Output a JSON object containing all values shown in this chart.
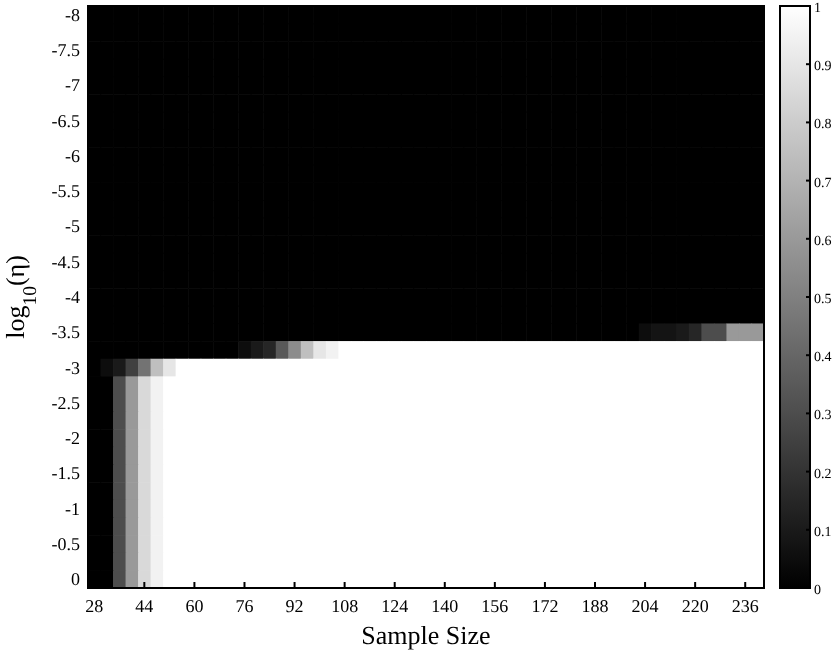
{
  "chart_data": {
    "type": "heatmap",
    "xlabel": "Sample Size",
    "ylabel": "log$_{10}$(η)",
    "x": [
      28,
      32,
      36,
      40,
      44,
      48,
      52,
      56,
      60,
      64,
      68,
      72,
      76,
      80,
      84,
      88,
      92,
      96,
      100,
      104,
      108,
      112,
      116,
      120,
      124,
      128,
      132,
      136,
      140,
      144,
      148,
      152,
      156,
      160,
      164,
      168,
      172,
      176,
      180,
      184,
      188,
      192,
      196,
      200,
      204,
      208,
      212,
      216,
      220,
      224,
      228,
      232,
      236,
      240
    ],
    "y_categories": [
      "-8",
      null,
      "-7.5",
      null,
      "-7",
      null,
      "-6.5",
      null,
      "-6",
      null,
      "-5.5",
      null,
      "-5",
      null,
      "-4.5",
      null,
      "-4",
      null,
      "-3.5",
      null,
      "-3",
      null,
      "-2.5",
      null,
      "-2",
      null,
      "-1.5",
      null,
      "-1",
      null,
      "-0.5",
      null,
      "0"
    ],
    "cells": [
      [
        0,
        0,
        0,
        0,
        0,
        0,
        0,
        0,
        0,
        0,
        0,
        0,
        0,
        0,
        0,
        0,
        0,
        0,
        0,
        0,
        0,
        0,
        0,
        0,
        0,
        0,
        0,
        0,
        0,
        0,
        0,
        0,
        0,
        0,
        0,
        0,
        0,
        0,
        0,
        0,
        0,
        0,
        0,
        0,
        0,
        0,
        0,
        0,
        0,
        0,
        0,
        0,
        0,
        0
      ],
      [
        0,
        0,
        0,
        0,
        0,
        0,
        0,
        0,
        0,
        0,
        0,
        0,
        0,
        0,
        0,
        0,
        0,
        0,
        0,
        0,
        0,
        0,
        0,
        0,
        0,
        0,
        0,
        0,
        0,
        0,
        0,
        0,
        0,
        0,
        0,
        0,
        0,
        0,
        0,
        0,
        0,
        0,
        0,
        0,
        0,
        0,
        0,
        0,
        0,
        0,
        0,
        0,
        0,
        0
      ],
      [
        0,
        0,
        0,
        0,
        0,
        0,
        0,
        0,
        0,
        0,
        0,
        0,
        0,
        0,
        0,
        0,
        0,
        0,
        0,
        0,
        0,
        0,
        0,
        0,
        0,
        0,
        0,
        0,
        0,
        0,
        0,
        0,
        0,
        0,
        0,
        0,
        0,
        0,
        0,
        0,
        0,
        0,
        0,
        0,
        0,
        0,
        0,
        0,
        0,
        0,
        0,
        0,
        0,
        0
      ],
      [
        0,
        0,
        0,
        0,
        0,
        0,
        0,
        0,
        0,
        0,
        0,
        0,
        0,
        0,
        0,
        0,
        0,
        0,
        0,
        0,
        0,
        0,
        0,
        0,
        0,
        0,
        0,
        0,
        0,
        0,
        0,
        0,
        0,
        0,
        0,
        0,
        0,
        0,
        0,
        0,
        0,
        0,
        0,
        0,
        0,
        0,
        0,
        0,
        0,
        0,
        0,
        0,
        0,
        0
      ],
      [
        0,
        0,
        0,
        0,
        0,
        0,
        0,
        0,
        0,
        0,
        0,
        0,
        0,
        0,
        0,
        0,
        0,
        0,
        0,
        0,
        0,
        0,
        0,
        0,
        0,
        0,
        0,
        0,
        0,
        0,
        0,
        0,
        0,
        0,
        0,
        0,
        0,
        0,
        0,
        0,
        0,
        0,
        0,
        0,
        0,
        0,
        0,
        0,
        0,
        0,
        0,
        0,
        0,
        0
      ],
      [
        0,
        0,
        0,
        0,
        0,
        0,
        0,
        0,
        0,
        0,
        0,
        0,
        0,
        0,
        0,
        0,
        0,
        0,
        0,
        0,
        0,
        0,
        0,
        0,
        0,
        0,
        0,
        0,
        0,
        0,
        0,
        0,
        0,
        0,
        0,
        0,
        0,
        0,
        0,
        0,
        0,
        0,
        0,
        0,
        0,
        0,
        0,
        0,
        0,
        0,
        0,
        0,
        0,
        0
      ],
      [
        0,
        0,
        0,
        0,
        0,
        0,
        0,
        0,
        0,
        0,
        0,
        0,
        0,
        0,
        0,
        0,
        0,
        0,
        0,
        0,
        0,
        0,
        0,
        0,
        0,
        0,
        0,
        0,
        0,
        0,
        0,
        0,
        0,
        0,
        0,
        0,
        0,
        0,
        0,
        0,
        0,
        0,
        0,
        0,
        0,
        0,
        0,
        0,
        0,
        0,
        0,
        0,
        0,
        0
      ],
      [
        0,
        0,
        0,
        0,
        0,
        0,
        0,
        0,
        0,
        0,
        0,
        0,
        0,
        0,
        0,
        0,
        0,
        0,
        0,
        0,
        0,
        0,
        0,
        0,
        0,
        0,
        0,
        0,
        0,
        0,
        0,
        0,
        0,
        0,
        0,
        0,
        0,
        0,
        0,
        0,
        0,
        0,
        0,
        0,
        0,
        0,
        0,
        0,
        0,
        0,
        0,
        0,
        0,
        0
      ],
      [
        0,
        0,
        0,
        0,
        0,
        0,
        0,
        0,
        0,
        0,
        0,
        0,
        0,
        0,
        0,
        0,
        0,
        0,
        0,
        0,
        0,
        0,
        0,
        0,
        0,
        0,
        0,
        0,
        0,
        0,
        0,
        0,
        0,
        0,
        0,
        0,
        0,
        0,
        0,
        0,
        0,
        0,
        0,
        0,
        0,
        0,
        0,
        0,
        0,
        0,
        0,
        0,
        0,
        0
      ],
      [
        0,
        0,
        0,
        0,
        0,
        0,
        0,
        0,
        0,
        0,
        0,
        0,
        0,
        0,
        0,
        0,
        0,
        0,
        0,
        0,
        0,
        0,
        0,
        0,
        0,
        0,
        0,
        0,
        0,
        0,
        0,
        0,
        0,
        0,
        0,
        0,
        0,
        0,
        0,
        0,
        0,
        0,
        0,
        0,
        0,
        0,
        0,
        0,
        0,
        0,
        0,
        0,
        0,
        0
      ],
      [
        0,
        0,
        0,
        0,
        0,
        0,
        0,
        0,
        0,
        0,
        0,
        0,
        0,
        0,
        0,
        0,
        0,
        0,
        0,
        0,
        0,
        0,
        0,
        0,
        0,
        0,
        0,
        0,
        0,
        0,
        0,
        0,
        0,
        0,
        0,
        0,
        0,
        0,
        0,
        0,
        0,
        0,
        0,
        0,
        0,
        0,
        0,
        0,
        0,
        0,
        0,
        0,
        0,
        0
      ],
      [
        0,
        0,
        0,
        0,
        0,
        0,
        0,
        0,
        0,
        0,
        0,
        0,
        0,
        0,
        0,
        0,
        0,
        0,
        0,
        0,
        0,
        0,
        0,
        0,
        0,
        0,
        0,
        0,
        0,
        0,
        0,
        0,
        0,
        0,
        0,
        0,
        0,
        0,
        0,
        0,
        0,
        0,
        0,
        0,
        0,
        0,
        0,
        0,
        0,
        0,
        0,
        0,
        0,
        0
      ],
      [
        0,
        0,
        0,
        0,
        0,
        0,
        0,
        0,
        0,
        0,
        0,
        0,
        0,
        0,
        0,
        0,
        0,
        0,
        0,
        0,
        0,
        0,
        0,
        0,
        0,
        0,
        0,
        0,
        0,
        0,
        0,
        0,
        0,
        0,
        0,
        0,
        0,
        0,
        0,
        0,
        0,
        0,
        0,
        0,
        0,
        0,
        0,
        0,
        0,
        0,
        0,
        0,
        0,
        0
      ],
      [
        0,
        0,
        0,
        0,
        0,
        0,
        0,
        0,
        0,
        0,
        0,
        0,
        0,
        0,
        0,
        0,
        0,
        0,
        0,
        0,
        0,
        0,
        0,
        0,
        0,
        0,
        0,
        0,
        0,
        0,
        0,
        0,
        0,
        0,
        0,
        0,
        0,
        0,
        0,
        0,
        0,
        0,
        0,
        0,
        0,
        0,
        0,
        0,
        0,
        0,
        0,
        0,
        0,
        0
      ],
      [
        0,
        0,
        0,
        0,
        0,
        0,
        0,
        0,
        0,
        0,
        0,
        0,
        0,
        0,
        0,
        0,
        0,
        0,
        0,
        0,
        0,
        0,
        0,
        0,
        0,
        0,
        0,
        0,
        0,
        0,
        0,
        0,
        0,
        0,
        0,
        0,
        0,
        0,
        0,
        0,
        0,
        0,
        0,
        0,
        0,
        0,
        0,
        0,
        0,
        0,
        0,
        0,
        0,
        0
      ],
      [
        0,
        0,
        0,
        0,
        0,
        0,
        0,
        0,
        0,
        0,
        0,
        0,
        0,
        0,
        0,
        0,
        0,
        0,
        0,
        0,
        0,
        0,
        0,
        0,
        0,
        0,
        0,
        0,
        0,
        0,
        0,
        0,
        0,
        0,
        0,
        0,
        0,
        0,
        0,
        0,
        0,
        0,
        0,
        0,
        0,
        0,
        0,
        0,
        0,
        0,
        0,
        0,
        0,
        0
      ],
      [
        0,
        0,
        0,
        0,
        0,
        0,
        0,
        0,
        0,
        0,
        0,
        0,
        0,
        0,
        0,
        0,
        0,
        0,
        0,
        0,
        0,
        0,
        0,
        0,
        0,
        0,
        0,
        0,
        0,
        0,
        0,
        0,
        0,
        0,
        0,
        0,
        0,
        0,
        0,
        0,
        0,
        0,
        0,
        0,
        0,
        0,
        0,
        0,
        0,
        0,
        0,
        0,
        0,
        0
      ],
      [
        0,
        0,
        0,
        0,
        0,
        0,
        0,
        0,
        0,
        0,
        0,
        0,
        0,
        0,
        0,
        0,
        0,
        0,
        0,
        0,
        0,
        0,
        0,
        0,
        0,
        0,
        0,
        0,
        0,
        0,
        0,
        0,
        0,
        0,
        0,
        0,
        0,
        0,
        0,
        0,
        0,
        0,
        0,
        0,
        0,
        0,
        0,
        0,
        0,
        0,
        0,
        0,
        0,
        0
      ],
      [
        0,
        0,
        0,
        0,
        0,
        0,
        0,
        0,
        0,
        0,
        0,
        0,
        0,
        0,
        0,
        0,
        0,
        0,
        0,
        0,
        0,
        0,
        0,
        0,
        0,
        0,
        0,
        0,
        0,
        0,
        0,
        0,
        0,
        0,
        0,
        0,
        0,
        0,
        0,
        0,
        0,
        0,
        0,
        0,
        0.05,
        0.08,
        0.08,
        0.1,
        0.15,
        0.3,
        0.3,
        0.6,
        0.6,
        0.6
      ],
      [
        0,
        0,
        0,
        0,
        0,
        0,
        0,
        0,
        0,
        0,
        0,
        0,
        0.05,
        0.1,
        0.15,
        0.35,
        0.55,
        0.75,
        0.9,
        0.95,
        1,
        1,
        1,
        1,
        1,
        1,
        1,
        1,
        1,
        1,
        1,
        1,
        1,
        1,
        1,
        1,
        1,
        1,
        1,
        1,
        1,
        1,
        1,
        1,
        1,
        1,
        1,
        1,
        1,
        1,
        1,
        1,
        1,
        1
      ],
      [
        0,
        0.05,
        0.1,
        0.25,
        0.45,
        0.75,
        0.9,
        1,
        1,
        1,
        1,
        1,
        1,
        1,
        1,
        1,
        1,
        1,
        1,
        1,
        1,
        1,
        1,
        1,
        1,
        1,
        1,
        1,
        1,
        1,
        1,
        1,
        1,
        1,
        1,
        1,
        1,
        1,
        1,
        1,
        1,
        1,
        1,
        1,
        1,
        1,
        1,
        1,
        1,
        1,
        1,
        1,
        1,
        1
      ],
      [
        0,
        0,
        0.3,
        0.6,
        0.85,
        0.95,
        1,
        1,
        1,
        1,
        1,
        1,
        1,
        1,
        1,
        1,
        1,
        1,
        1,
        1,
        1,
        1,
        1,
        1,
        1,
        1,
        1,
        1,
        1,
        1,
        1,
        1,
        1,
        1,
        1,
        1,
        1,
        1,
        1,
        1,
        1,
        1,
        1,
        1,
        1,
        1,
        1,
        1,
        1,
        1,
        1,
        1,
        1,
        1
      ],
      [
        0,
        0,
        0.3,
        0.6,
        0.85,
        0.95,
        1,
        1,
        1,
        1,
        1,
        1,
        1,
        1,
        1,
        1,
        1,
        1,
        1,
        1,
        1,
        1,
        1,
        1,
        1,
        1,
        1,
        1,
        1,
        1,
        1,
        1,
        1,
        1,
        1,
        1,
        1,
        1,
        1,
        1,
        1,
        1,
        1,
        1,
        1,
        1,
        1,
        1,
        1,
        1,
        1,
        1,
        1,
        1
      ],
      [
        0,
        0,
        0.3,
        0.6,
        0.85,
        0.95,
        1,
        1,
        1,
        1,
        1,
        1,
        1,
        1,
        1,
        1,
        1,
        1,
        1,
        1,
        1,
        1,
        1,
        1,
        1,
        1,
        1,
        1,
        1,
        1,
        1,
        1,
        1,
        1,
        1,
        1,
        1,
        1,
        1,
        1,
        1,
        1,
        1,
        1,
        1,
        1,
        1,
        1,
        1,
        1,
        1,
        1,
        1,
        1
      ],
      [
        0,
        0,
        0.3,
        0.6,
        0.85,
        0.95,
        1,
        1,
        1,
        1,
        1,
        1,
        1,
        1,
        1,
        1,
        1,
        1,
        1,
        1,
        1,
        1,
        1,
        1,
        1,
        1,
        1,
        1,
        1,
        1,
        1,
        1,
        1,
        1,
        1,
        1,
        1,
        1,
        1,
        1,
        1,
        1,
        1,
        1,
        1,
        1,
        1,
        1,
        1,
        1,
        1,
        1,
        1,
        1
      ],
      [
        0,
        0,
        0.3,
        0.6,
        0.85,
        0.95,
        1,
        1,
        1,
        1,
        1,
        1,
        1,
        1,
        1,
        1,
        1,
        1,
        1,
        1,
        1,
        1,
        1,
        1,
        1,
        1,
        1,
        1,
        1,
        1,
        1,
        1,
        1,
        1,
        1,
        1,
        1,
        1,
        1,
        1,
        1,
        1,
        1,
        1,
        1,
        1,
        1,
        1,
        1,
        1,
        1,
        1,
        1,
        1
      ],
      [
        0,
        0,
        0.3,
        0.6,
        0.85,
        0.95,
        1,
        1,
        1,
        1,
        1,
        1,
        1,
        1,
        1,
        1,
        1,
        1,
        1,
        1,
        1,
        1,
        1,
        1,
        1,
        1,
        1,
        1,
        1,
        1,
        1,
        1,
        1,
        1,
        1,
        1,
        1,
        1,
        1,
        1,
        1,
        1,
        1,
        1,
        1,
        1,
        1,
        1,
        1,
        1,
        1,
        1,
        1,
        1
      ],
      [
        0,
        0,
        0.3,
        0.6,
        0.85,
        0.95,
        1,
        1,
        1,
        1,
        1,
        1,
        1,
        1,
        1,
        1,
        1,
        1,
        1,
        1,
        1,
        1,
        1,
        1,
        1,
        1,
        1,
        1,
        1,
        1,
        1,
        1,
        1,
        1,
        1,
        1,
        1,
        1,
        1,
        1,
        1,
        1,
        1,
        1,
        1,
        1,
        1,
        1,
        1,
        1,
        1,
        1,
        1,
        1
      ],
      [
        0,
        0,
        0.3,
        0.6,
        0.85,
        0.95,
        1,
        1,
        1,
        1,
        1,
        1,
        1,
        1,
        1,
        1,
        1,
        1,
        1,
        1,
        1,
        1,
        1,
        1,
        1,
        1,
        1,
        1,
        1,
        1,
        1,
        1,
        1,
        1,
        1,
        1,
        1,
        1,
        1,
        1,
        1,
        1,
        1,
        1,
        1,
        1,
        1,
        1,
        1,
        1,
        1,
        1,
        1,
        1
      ],
      [
        0,
        0,
        0.3,
        0.6,
        0.85,
        0.95,
        1,
        1,
        1,
        1,
        1,
        1,
        1,
        1,
        1,
        1,
        1,
        1,
        1,
        1,
        1,
        1,
        1,
        1,
        1,
        1,
        1,
        1,
        1,
        1,
        1,
        1,
        1,
        1,
        1,
        1,
        1,
        1,
        1,
        1,
        1,
        1,
        1,
        1,
        1,
        1,
        1,
        1,
        1,
        1,
        1,
        1,
        1,
        1
      ],
      [
        0,
        0,
        0.3,
        0.6,
        0.85,
        0.95,
        1,
        1,
        1,
        1,
        1,
        1,
        1,
        1,
        1,
        1,
        1,
        1,
        1,
        1,
        1,
        1,
        1,
        1,
        1,
        1,
        1,
        1,
        1,
        1,
        1,
        1,
        1,
        1,
        1,
        1,
        1,
        1,
        1,
        1,
        1,
        1,
        1,
        1,
        1,
        1,
        1,
        1,
        1,
        1,
        1,
        1,
        1,
        1
      ],
      [
        0,
        0,
        0.3,
        0.6,
        0.85,
        0.95,
        1,
        1,
        1,
        1,
        1,
        1,
        1,
        1,
        1,
        1,
        1,
        1,
        1,
        1,
        1,
        1,
        1,
        1,
        1,
        1,
        1,
        1,
        1,
        1,
        1,
        1,
        1,
        1,
        1,
        1,
        1,
        1,
        1,
        1,
        1,
        1,
        1,
        1,
        1,
        1,
        1,
        1,
        1,
        1,
        1,
        1,
        1,
        1
      ],
      [
        0,
        0,
        0.3,
        0.6,
        0.85,
        0.95,
        1,
        1,
        1,
        1,
        1,
        1,
        1,
        1,
        1,
        1,
        1,
        1,
        1,
        1,
        1,
        1,
        1,
        1,
        1,
        1,
        1,
        1,
        1,
        1,
        1,
        1,
        1,
        1,
        1,
        1,
        1,
        1,
        1,
        1,
        1,
        1,
        1,
        1,
        1,
        1,
        1,
        1,
        1,
        1,
        1,
        1,
        1,
        1
      ]
    ],
    "xlim": [
      26,
      242
    ],
    "xticks": [
      28,
      44,
      60,
      76,
      92,
      108,
      124,
      140,
      156,
      172,
      188,
      204,
      220,
      236
    ],
    "clim": [
      0,
      1
    ],
    "cticks": [
      0,
      0.1,
      0.2,
      0.3,
      0.4,
      0.5,
      0.6,
      0.7,
      0.8,
      0.9,
      1
    ]
  }
}
